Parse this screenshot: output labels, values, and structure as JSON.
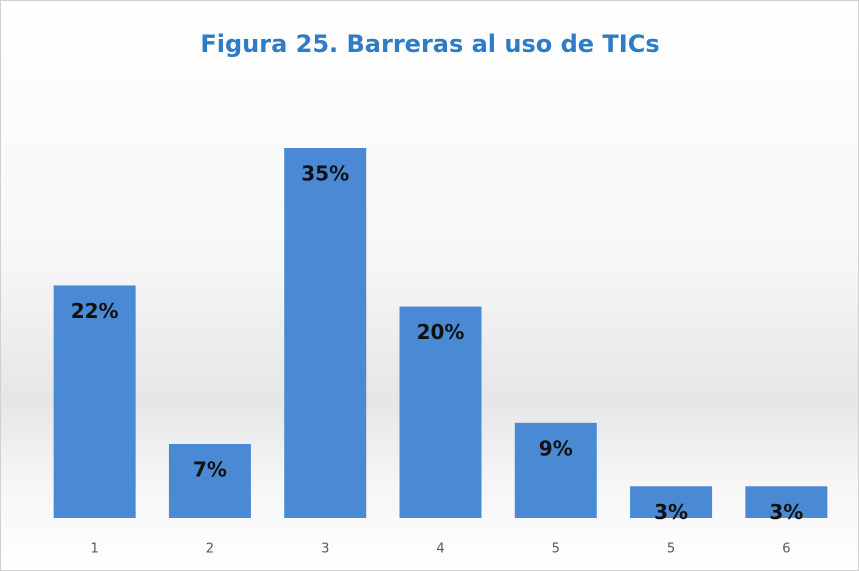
{
  "chart_data": {
    "type": "bar",
    "title": "Figura 25. Barreras al uso de TICs",
    "categories": [
      "1",
      "2",
      "3",
      "4",
      "5",
      "5",
      "6"
    ],
    "values": [
      22,
      7,
      35,
      20,
      9,
      3,
      3
    ],
    "value_labels": [
      "22%",
      "7%",
      "35%",
      "20%",
      "9%",
      "3%",
      "3%"
    ],
    "color": "#4a8ad4"
  }
}
